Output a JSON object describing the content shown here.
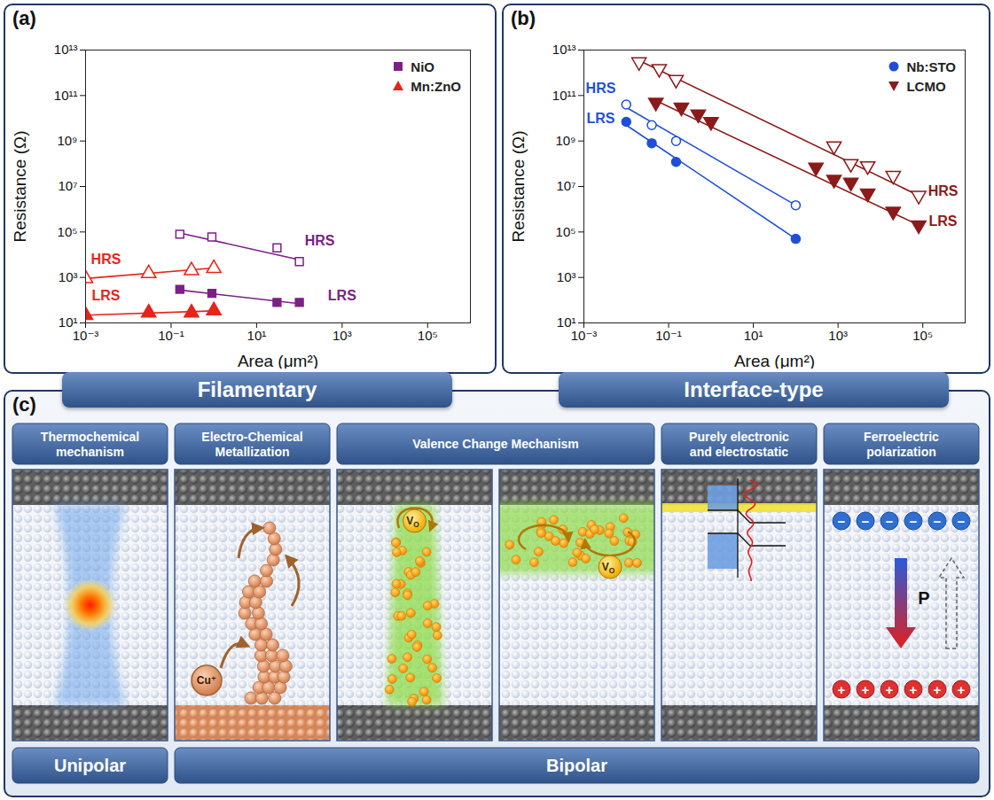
{
  "chart_data": [
    {
      "type": "scatter",
      "panel_label": "(a)",
      "caption": "Filamentary",
      "xlabel": "Area (μm²)",
      "ylabel": "Resistance (Ω)",
      "log": true,
      "grid": false,
      "legend": "top-right",
      "xlim": [
        0.001,
        1000000
      ],
      "ylim": [
        10,
        10000000000000.0
      ],
      "xticks": [
        {
          "value": 0.001,
          "label": "10⁻³"
        },
        {
          "value": 0.1,
          "label": "10⁻¹"
        },
        {
          "value": 10,
          "label": "10¹"
        },
        {
          "value": 1000,
          "label": "10³"
        },
        {
          "value": 100000,
          "label": "10⁵"
        }
      ],
      "yticks": [
        {
          "value": 10,
          "label": "10¹"
        },
        {
          "value": 1000,
          "label": "10³"
        },
        {
          "value": 100000,
          "label": "10⁵"
        },
        {
          "value": 10000000,
          "label": "10⁷"
        },
        {
          "value": 1000000000,
          "label": "10⁹"
        },
        {
          "value": 100000000000,
          "label": "10¹¹"
        },
        {
          "value": 10000000000000.0,
          "label": "10¹³"
        }
      ],
      "series": [
        {
          "name": "NiO",
          "color": "#7b2186",
          "marker": "square",
          "states": [
            {
              "name": "HRS",
              "marker": "square-open",
              "x": [
                0.16,
                0.9,
                30,
                100
              ],
              "values": [
                80000,
                60000,
                20000,
                5000
              ],
              "fit": {
                "x": [
                  0.16,
                  100
                ],
                "values": [
                  90000,
                  6000
                ]
              },
              "label_x": 300,
              "label_y": 40000
            },
            {
              "name": "LRS",
              "marker": "square",
              "x": [
                0.16,
                0.9,
                30,
                100
              ],
              "values": [
                300,
                200,
                80,
                80
              ],
              "fit": {
                "x": [
                  0.16,
                  100
                ],
                "values": [
                  280,
                  70
                ]
              },
              "label_x": 1000,
              "label_y": 150
            }
          ]
        },
        {
          "name": "Mn:ZnO",
          "color": "#e8231a",
          "marker": "triangle",
          "states": [
            {
              "name": "HRS",
              "marker": "triangle-open",
              "x": [
                0.001,
                0.03,
                0.3,
                1
              ],
              "values": [
                900,
                1500,
                2000,
                2500
              ],
              "fit": {
                "x": [
                  0.001,
                  1
                ],
                "values": [
                  900,
                  2600
                ]
              },
              "label_x": 0.003,
              "label_y": 6000
            },
            {
              "name": "LRS",
              "marker": "triangle",
              "x": [
                0.001,
                0.03,
                0.3,
                1
              ],
              "values": [
                22,
                28,
                28,
                35
              ],
              "fit": {
                "x": [
                  0.001,
                  1
                ],
                "values": [
                  22,
                  34
                ]
              },
              "label_x": 0.003,
              "label_y": 150
            }
          ]
        }
      ]
    },
    {
      "type": "scatter",
      "panel_label": "(b)",
      "caption": "Interface-type",
      "xlabel": "Area (μm²)",
      "ylabel": "Resistance (Ω)",
      "log": true,
      "grid": false,
      "legend": "top-right",
      "xlim": [
        0.001,
        1000000
      ],
      "ylim": [
        10,
        10000000000000.0
      ],
      "xticks": [
        {
          "value": 0.001,
          "label": "10⁻³"
        },
        {
          "value": 0.1,
          "label": "10⁻¹"
        },
        {
          "value": 10,
          "label": "10¹"
        },
        {
          "value": 1000,
          "label": "10³"
        },
        {
          "value": 100000,
          "label": "10⁵"
        }
      ],
      "yticks": [
        {
          "value": 10,
          "label": "10¹"
        },
        {
          "value": 1000,
          "label": "10³"
        },
        {
          "value": 100000,
          "label": "10⁵"
        },
        {
          "value": 10000000,
          "label": "10⁷"
        },
        {
          "value": 1000000000,
          "label": "10⁹"
        },
        {
          "value": 100000000000,
          "label": "10¹¹"
        },
        {
          "value": 10000000000000.0,
          "label": "10¹³"
        }
      ],
      "series": [
        {
          "name": "Nb:STO",
          "color": "#1f4fd8",
          "marker": "circle",
          "states": [
            {
              "name": "HRS",
              "marker": "circle-open",
              "x": [
                0.01,
                0.04,
                0.15,
                100
              ],
              "values": [
                40000000000,
                5000000000,
                1000000000,
                1500000
              ],
              "fit": {
                "x": [
                  0.01,
                  100
                ],
                "values": [
                  30000000000,
                  1500000
                ]
              },
              "label_x": 0.0025,
              "label_y": 200000000000
            },
            {
              "name": "LRS",
              "marker": "circle",
              "x": [
                0.01,
                0.04,
                0.15,
                100
              ],
              "values": [
                7000000000,
                800000000,
                120000000,
                50000
              ],
              "fit": {
                "x": [
                  0.01,
                  100
                ],
                "values": [
                  5000000000,
                  50000
                ]
              },
              "label_x": 0.0025,
              "label_y": 10000000000
            }
          ]
        },
        {
          "name": "LCMO",
          "color": "#8b1a1a",
          "marker": "triangle-down",
          "states": [
            {
              "name": "HRS",
              "marker": "triangle-down-open",
              "x": [
                0.02,
                0.06,
                0.15,
                800,
                2000,
                5000,
                20000,
                80000
              ],
              "values": [
                3000000000000,
                1500000000000,
                500000000000,
                600000000,
                100000000,
                80000000,
                30000000,
                4000000
              ],
              "fit": {
                "x": [
                  0.02,
                  80000
                ],
                "values": [
                  3500000000000,
                  4000000
                ]
              },
              "label_x": 300000,
              "label_y": 6000000
            },
            {
              "name": "LRS",
              "marker": "triangle-down",
              "x": [
                0.05,
                0.2,
                0.5,
                1,
                300,
                800,
                2000,
                5000,
                20000,
                80000
              ],
              "values": [
                50000000000,
                30000000000,
                15000000000,
                7000000000,
                70000000,
                20000000,
                15000000,
                5000000,
                800000,
                200000
              ],
              "fit": {
                "x": [
                  0.05,
                  80000
                ],
                "values": [
                  60000000000,
                  200000
                ]
              },
              "label_x": 300000,
              "label_y": 300000
            }
          ]
        }
      ]
    }
  ],
  "diagram": {
    "panel_label": "(c)",
    "columns": [
      {
        "title": "Thermochemical mechanism",
        "cells": [
          []
        ]
      },
      {
        "title": "Electro-Chemical Metallization",
        "cells": [
          [
            "Cu⁺"
          ]
        ]
      },
      {
        "title": "Valence Change Mechanism",
        "cells": [
          [
            {
              "text": "V",
              "subscript": "O"
            }
          ],
          [
            {
              "text": "V",
              "subscript": "O"
            }
          ]
        ]
      },
      {
        "title": "Purely electronic and electrostatic",
        "cells": [
          []
        ]
      },
      {
        "title": "Ferroelectric polarization",
        "cells": [
          [
            "P",
            "−",
            "+"
          ]
        ]
      }
    ],
    "modes": [
      {
        "label": "Unipolar",
        "span": 1
      },
      {
        "label": "Bipolar",
        "span": 5
      }
    ]
  }
}
